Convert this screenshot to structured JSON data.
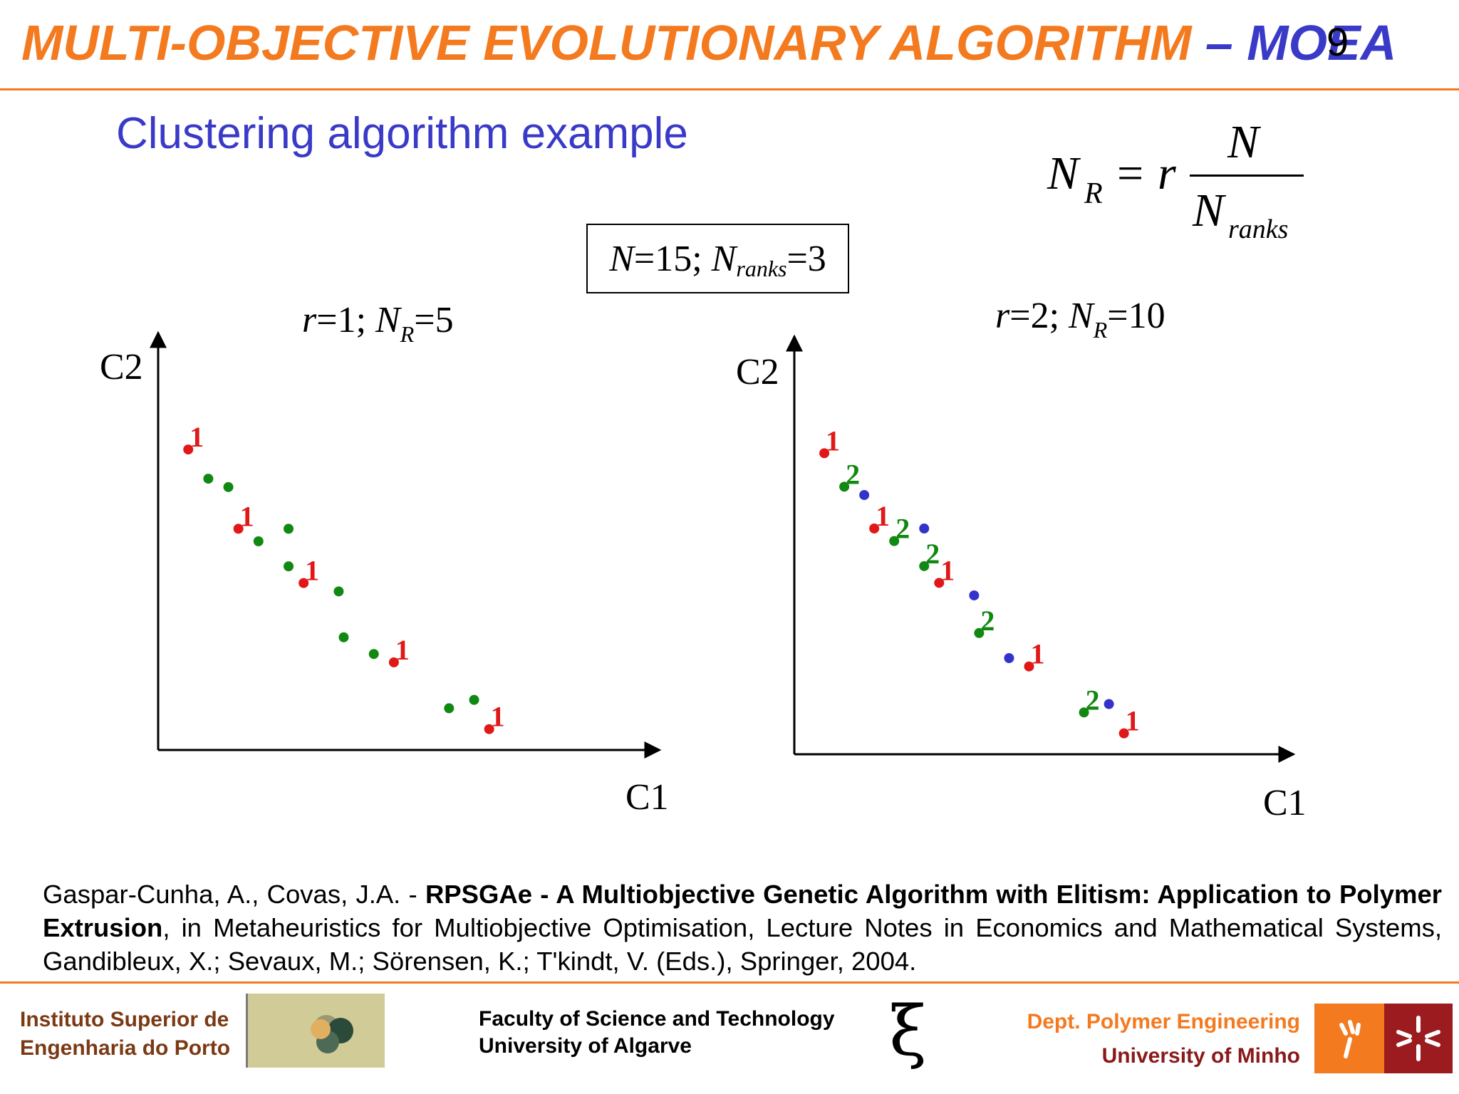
{
  "header": {
    "title_main": "MULTI-OBJECTIVE EVOLUTIONARY ALGORITHM",
    "title_dash": " – ",
    "title_acronym": "MOEA",
    "page_number": "9"
  },
  "subtitle": "Clustering algorithm example",
  "formula": {
    "lhs": "N",
    "lhs_sub": "R",
    "eq": "=",
    "coef": "r",
    "numerator": "N",
    "denominator": "N",
    "denominator_sub": "ranks"
  },
  "params": {
    "n_label": "N",
    "n_value": "=15; ",
    "ranks_label": "N",
    "ranks_sub": "ranks",
    "ranks_value": "=3"
  },
  "chart_data": [
    {
      "type": "scatter",
      "title_r": "r",
      "title_r_value": "=1; ",
      "title_n": "N",
      "title_n_sub": "R",
      "title_n_value": "=5",
      "xlabel": "C1",
      "ylabel": "C2",
      "points": [
        {
          "x": 0.06,
          "y": 0.72,
          "color": "#e01818",
          "label": "1"
        },
        {
          "x": 0.1,
          "y": 0.65,
          "color": "#118811",
          "label": ""
        },
        {
          "x": 0.14,
          "y": 0.63,
          "color": "#118811",
          "label": ""
        },
        {
          "x": 0.16,
          "y": 0.53,
          "color": "#e01818",
          "label": "1"
        },
        {
          "x": 0.2,
          "y": 0.5,
          "color": "#118811",
          "label": ""
        },
        {
          "x": 0.26,
          "y": 0.53,
          "color": "#118811",
          "label": ""
        },
        {
          "x": 0.26,
          "y": 0.44,
          "color": "#118811",
          "label": ""
        },
        {
          "x": 0.29,
          "y": 0.4,
          "color": "#e01818",
          "label": "1"
        },
        {
          "x": 0.36,
          "y": 0.38,
          "color": "#118811",
          "label": ""
        },
        {
          "x": 0.37,
          "y": 0.27,
          "color": "#118811",
          "label": ""
        },
        {
          "x": 0.43,
          "y": 0.23,
          "color": "#118811",
          "label": ""
        },
        {
          "x": 0.47,
          "y": 0.21,
          "color": "#e01818",
          "label": "1"
        },
        {
          "x": 0.58,
          "y": 0.1,
          "color": "#118811",
          "label": ""
        },
        {
          "x": 0.63,
          "y": 0.12,
          "color": "#118811",
          "label": ""
        },
        {
          "x": 0.66,
          "y": 0.05,
          "color": "#e01818",
          "label": "1"
        }
      ]
    },
    {
      "type": "scatter",
      "title_r": "r",
      "title_r_value": "=2; ",
      "title_n": "N",
      "title_n_sub": "R",
      "title_n_value": "=10",
      "xlabel": "C1",
      "ylabel": "C2",
      "points": [
        {
          "x": 0.06,
          "y": 0.72,
          "color": "#e01818",
          "label": "1"
        },
        {
          "x": 0.1,
          "y": 0.64,
          "color": "#118811",
          "label": "2"
        },
        {
          "x": 0.14,
          "y": 0.62,
          "color": "#3333cc",
          "label": ""
        },
        {
          "x": 0.16,
          "y": 0.54,
          "color": "#e01818",
          "label": "1"
        },
        {
          "x": 0.2,
          "y": 0.51,
          "color": "#118811",
          "label": "2"
        },
        {
          "x": 0.26,
          "y": 0.54,
          "color": "#3333cc",
          "label": ""
        },
        {
          "x": 0.26,
          "y": 0.45,
          "color": "#118811",
          "label": "2"
        },
        {
          "x": 0.29,
          "y": 0.41,
          "color": "#e01818",
          "label": "1"
        },
        {
          "x": 0.36,
          "y": 0.38,
          "color": "#3333cc",
          "label": ""
        },
        {
          "x": 0.37,
          "y": 0.29,
          "color": "#118811",
          "label": "2"
        },
        {
          "x": 0.43,
          "y": 0.23,
          "color": "#3333cc",
          "label": ""
        },
        {
          "x": 0.47,
          "y": 0.21,
          "color": "#e01818",
          "label": "1"
        },
        {
          "x": 0.58,
          "y": 0.1,
          "color": "#118811",
          "label": "2"
        },
        {
          "x": 0.63,
          "y": 0.12,
          "color": "#3333cc",
          "label": ""
        },
        {
          "x": 0.66,
          "y": 0.05,
          "color": "#e01818",
          "label": "1"
        }
      ]
    }
  ],
  "reference": {
    "authors": "Gaspar-Cunha, A., Covas, J.A. - ",
    "title_bold": "RPSGAe - A Multiobjective Genetic Algorithm with Elitism: Application to Polymer Extrusion",
    "rest": ", in Metaheuristics for Multiobjective Optimisation, Lecture Notes in Economics and Mathematical Systems, Gandibleux, X.; Sevaux, M.; Sörensen, K.; T'kindt, V. (Eds.), Springer, 2004."
  },
  "footer": {
    "left_line1": "Instituto Superior de",
    "left_line2": "Engenharia do Porto",
    "mid_line1": "Faculty of Science and Technology",
    "mid_line2": "University of Algarve",
    "xi_symbol": "ξ",
    "right_line1": "Dept. Polymer Engineering",
    "right_line2": "University of Minho"
  }
}
